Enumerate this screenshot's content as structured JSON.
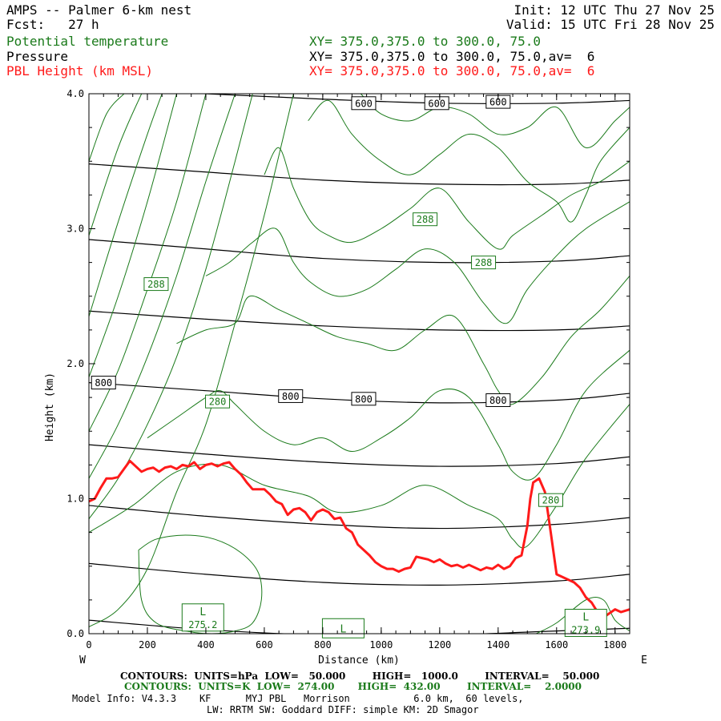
{
  "header": {
    "title": "AMPS -- Palmer 6-km nest",
    "fcst": "Fcst:   27 h",
    "init": "Init: 12 UTC Thu 27 Nov 25",
    "valid": "Valid: 15 UTC Fri 28 Nov 25",
    "fields": [
      {
        "label": "Potential temperature",
        "xy": "XY= 375.0,375.0 to 300.0, 75.0",
        "color": "#1a7a1a"
      },
      {
        "label": "Pressure",
        "xy": "XY= 375.0,375.0 to 300.0, 75.0,av=  6",
        "color": "#000000"
      },
      {
        "label": "PBL Height (km MSL)",
        "xy": "XY= 375.0,375.0 to 300.0, 75.0,av=  6",
        "color": "#ff1a1a"
      }
    ]
  },
  "chart_data": {
    "type": "line",
    "xlabel": "Distance (km)",
    "ylabel": "Height (km)",
    "xlim": [
      0,
      1850
    ],
    "ylim": [
      0,
      4.0
    ],
    "xticks": [
      "0",
      "200",
      "400",
      "600",
      "800",
      "1000",
      "1200",
      "1400",
      "1600",
      "1800"
    ],
    "xtick_values": [
      0,
      200,
      400,
      600,
      800,
      1000,
      1200,
      1400,
      1600,
      1800
    ],
    "yticks": [
      "0.0",
      "1.0",
      "2.0",
      "3.0",
      "4.0"
    ],
    "ytick_values": [
      0,
      1,
      2,
      3,
      4
    ],
    "west_label": "W",
    "east_label": "E",
    "pressure_contours": [
      {
        "x": [
          0,
          400,
          800,
          1200,
          1600,
          1850
        ],
        "y": [
          0.1,
          0.03,
          -0.01,
          -0.01,
          0.02,
          0.04
        ]
      },
      {
        "x": [
          0,
          400,
          800,
          1200,
          1600,
          1850
        ],
        "y": [
          0.52,
          0.44,
          0.38,
          0.36,
          0.39,
          0.44
        ]
      },
      {
        "x": [
          0,
          400,
          800,
          1200,
          1600,
          1850
        ],
        "y": [
          0.95,
          0.87,
          0.81,
          0.78,
          0.81,
          0.86
        ]
      },
      {
        "x": [
          0,
          400,
          800,
          1200,
          1600,
          1850
        ],
        "y": [
          1.4,
          1.33,
          1.27,
          1.24,
          1.26,
          1.31
        ]
      },
      {
        "x": [
          0,
          400,
          800,
          1200,
          1600,
          1850
        ],
        "y": [
          1.86,
          1.8,
          1.74,
          1.71,
          1.73,
          1.78
        ]
      },
      {
        "x": [
          0,
          400,
          800,
          1200,
          1600,
          1850
        ],
        "y": [
          2.39,
          2.33,
          2.28,
          2.25,
          2.25,
          2.28
        ]
      },
      {
        "x": [
          0,
          400,
          800,
          1200,
          1600,
          1850
        ],
        "y": [
          2.92,
          2.85,
          2.78,
          2.75,
          2.76,
          2.8
        ]
      },
      {
        "x": [
          0,
          400,
          800,
          1200,
          1600,
          1850
        ],
        "y": [
          3.48,
          3.42,
          3.36,
          3.33,
          3.33,
          3.36
        ]
      },
      {
        "x": [
          0,
          400,
          800,
          1200,
          1600,
          1850
        ],
        "y": [
          4.05,
          4.0,
          3.96,
          3.93,
          3.93,
          3.95
        ]
      }
    ],
    "pressure_labels": [
      {
        "text": "600",
        "x": 940,
        "y": 3.93
      },
      {
        "text": "600",
        "x": 1190,
        "y": 3.93
      },
      {
        "text": "600",
        "x": 1400,
        "y": 3.94
      },
      {
        "text": "800",
        "x": 50,
        "y": 1.86
      },
      {
        "text": "800",
        "x": 690,
        "y": 1.76
      },
      {
        "text": "800",
        "x": 940,
        "y": 1.74
      },
      {
        "text": "800",
        "x": 1400,
        "y": 1.73
      }
    ],
    "theta_contours": [
      {
        "x": [
          0,
          100,
          200,
          300,
          400,
          500,
          600,
          700
        ],
        "y": [
          0.05,
          0.18,
          0.48,
          1.05,
          1.55,
          2.3,
          3.1,
          4.0
        ]
      },
      {
        "x": [
          0,
          100,
          200,
          300,
          400,
          500,
          560
        ],
        "y": [
          0.85,
          1.15,
          1.55,
          2.05,
          2.7,
          3.5,
          4.0
        ]
      },
      {
        "x": [
          0,
          100,
          200,
          300,
          400,
          500
        ],
        "y": [
          1.15,
          1.55,
          2.05,
          2.65,
          3.35,
          4.0
        ]
      },
      {
        "x": [
          0,
          100,
          200,
          300,
          400
        ],
        "y": [
          1.5,
          1.95,
          2.55,
          3.2,
          4.0
        ]
      },
      {
        "x": [
          0,
          100,
          200,
          300
        ],
        "y": [
          1.9,
          2.5,
          3.2,
          4.0
        ]
      },
      {
        "x": [
          0,
          100,
          200,
          250
        ],
        "y": [
          2.35,
          3.05,
          3.7,
          4.0
        ]
      },
      {
        "x": [
          0,
          100,
          180
        ],
        "y": [
          2.95,
          3.6,
          4.0
        ]
      },
      {
        "x": [
          0,
          60,
          120
        ],
        "y": [
          3.5,
          3.85,
          4.0
        ]
      },
      {
        "x": [
          0,
          150,
          300,
          450,
          600,
          750,
          850,
          1000,
          1150,
          1300,
          1400,
          1450,
          1500,
          1600,
          1700,
          1850
        ],
        "y": [
          0.75,
          0.95,
          1.2,
          1.25,
          1.1,
          1.02,
          0.9,
          0.95,
          1.1,
          0.95,
          0.85,
          0.7,
          0.65,
          0.95,
          1.3,
          1.7
        ]
      },
      {
        "x": [
          200,
          300,
          400,
          450,
          500,
          600,
          700,
          800,
          900,
          1000,
          1100,
          1200,
          1300,
          1400,
          1450,
          1520,
          1600,
          1700,
          1850
        ],
        "y": [
          1.45,
          1.6,
          1.75,
          1.8,
          1.7,
          1.5,
          1.4,
          1.45,
          1.35,
          1.45,
          1.6,
          1.8,
          1.75,
          1.4,
          1.2,
          1.15,
          1.4,
          1.8,
          2.1
        ]
      },
      {
        "x": [
          300,
          400,
          500,
          550,
          650,
          750,
          850,
          950,
          1050,
          1150,
          1250,
          1350,
          1400,
          1450,
          1550,
          1650,
          1750,
          1850
        ],
        "y": [
          2.15,
          2.25,
          2.3,
          2.5,
          2.4,
          2.3,
          2.2,
          2.15,
          2.1,
          2.25,
          2.35,
          2.0,
          1.8,
          1.7,
          1.9,
          2.2,
          2.4,
          2.65
        ]
      },
      {
        "x": [
          400,
          480,
          560,
          640,
          700,
          760,
          850,
          950,
          1050,
          1150,
          1250,
          1350,
          1430,
          1500,
          1600,
          1700,
          1850
        ],
        "y": [
          2.65,
          2.75,
          2.9,
          3.0,
          2.75,
          2.6,
          2.5,
          2.55,
          2.7,
          2.85,
          2.75,
          2.45,
          2.3,
          2.55,
          2.8,
          3.0,
          3.2
        ]
      },
      {
        "x": [
          600,
          650,
          700,
          760,
          820,
          900,
          1000,
          1100,
          1200,
          1300,
          1400,
          1450,
          1550,
          1650,
          1750,
          1850
        ],
        "y": [
          3.4,
          3.6,
          3.3,
          3.05,
          2.95,
          2.9,
          3.0,
          3.15,
          3.3,
          3.05,
          2.85,
          2.95,
          3.1,
          3.25,
          3.35,
          3.5
        ]
      },
      {
        "x": [
          750,
          820,
          900,
          1000,
          1100,
          1200,
          1300,
          1400,
          1500,
          1600,
          1650,
          1700,
          1750,
          1850
        ],
        "y": [
          3.8,
          3.95,
          3.7,
          3.5,
          3.4,
          3.55,
          3.7,
          3.6,
          3.35,
          3.2,
          3.05,
          3.25,
          3.5,
          3.75
        ]
      },
      {
        "x": [
          930,
          1000,
          1100,
          1200,
          1300,
          1400,
          1500,
          1600,
          1700,
          1800,
          1850
        ],
        "y": [
          4.0,
          3.85,
          3.8,
          3.9,
          3.85,
          3.7,
          3.75,
          3.9,
          3.6,
          3.8,
          3.9
        ]
      },
      {
        "x": [
          170,
          230,
          330,
          430,
          520,
          580,
          590,
          560,
          500,
          420,
          330,
          230,
          180,
          170
        ],
        "y": [
          0.62,
          0.7,
          0.73,
          0.7,
          0.6,
          0.45,
          0.25,
          0.08,
          0.02,
          0.0,
          0.02,
          0.08,
          0.25,
          0.62
        ]
      },
      {
        "x": [
          1530,
          1600,
          1700,
          1760,
          1800,
          1850
        ],
        "y": [
          0.0,
          0.08,
          0.25,
          0.25,
          0.1,
          0.02
        ]
      }
    ],
    "theta_labels": [
      {
        "text": "288",
        "x": 1150,
        "y": 3.07
      },
      {
        "text": "288",
        "x": 1350,
        "y": 2.75
      },
      {
        "text": "288",
        "x": 230,
        "y": 2.59
      },
      {
        "text": "280",
        "x": 440,
        "y": 1.72
      },
      {
        "text": "280",
        "x": 1580,
        "y": 0.99
      }
    ],
    "low_labels": [
      {
        "letter": "L",
        "value": "275.2",
        "x": 390,
        "y": 0.12
      },
      {
        "letter": "L",
        "value": "",
        "x": 870,
        "y": 0.04
      },
      {
        "letter": "L",
        "value": "273.9",
        "x": 1700,
        "y": 0.08
      }
    ],
    "pbl_height": {
      "x": [
        0,
        20,
        40,
        60,
        80,
        100,
        120,
        140,
        160,
        180,
        200,
        220,
        240,
        260,
        280,
        300,
        320,
        340,
        360,
        380,
        400,
        420,
        440,
        460,
        480,
        500,
        520,
        540,
        560,
        580,
        600,
        620,
        640,
        660,
        680,
        700,
        720,
        740,
        760,
        780,
        800,
        820,
        840,
        860,
        880,
        900,
        920,
        940,
        960,
        980,
        1000,
        1020,
        1040,
        1060,
        1080,
        1100,
        1120,
        1140,
        1160,
        1180,
        1200,
        1220,
        1240,
        1260,
        1280,
        1300,
        1320,
        1340,
        1360,
        1380,
        1400,
        1420,
        1440,
        1460,
        1480,
        1500,
        1510,
        1520,
        1540,
        1560,
        1580,
        1600,
        1620,
        1640,
        1660,
        1680,
        1700,
        1720,
        1740,
        1760,
        1780,
        1800,
        1820,
        1850
      ],
      "y": [
        0.98,
        1.0,
        1.08,
        1.15,
        1.15,
        1.16,
        1.22,
        1.28,
        1.24,
        1.2,
        1.22,
        1.23,
        1.2,
        1.23,
        1.24,
        1.22,
        1.25,
        1.24,
        1.27,
        1.22,
        1.25,
        1.26,
        1.24,
        1.26,
        1.27,
        1.22,
        1.18,
        1.12,
        1.07,
        1.07,
        1.07,
        1.03,
        0.98,
        0.96,
        0.88,
        0.92,
        0.93,
        0.9,
        0.84,
        0.9,
        0.92,
        0.9,
        0.85,
        0.86,
        0.78,
        0.75,
        0.66,
        0.62,
        0.58,
        0.53,
        0.5,
        0.48,
        0.48,
        0.46,
        0.48,
        0.49,
        0.57,
        0.56,
        0.55,
        0.53,
        0.55,
        0.52,
        0.5,
        0.51,
        0.49,
        0.51,
        0.49,
        0.47,
        0.49,
        0.48,
        0.51,
        0.48,
        0.5,
        0.56,
        0.58,
        0.8,
        1.0,
        1.12,
        1.15,
        1.05,
        0.75,
        0.44,
        0.42,
        0.4,
        0.38,
        0.34,
        0.27,
        0.23,
        0.16,
        0.12,
        0.15,
        0.18,
        0.16,
        0.18
      ]
    }
  },
  "footer": {
    "line1_a": "CONTOURS:  UNITS=hPa  LOW=   50.000        HIGH=   1000.0        INTERVAL=    50.000",
    "line2_a": "CONTOURS:  UNITS=K  LOW=  274.00       HIGH=  432.00        INTERVAL=    2.0000",
    "line3": "Model Info: V4.3.3    KF      MYJ PBL   Morrison           6.0 km,  60 levels,",
    "line4": "LW: RRTM SW: Goddard DIFF: simple KM: 2D Smagor"
  },
  "colors": {
    "theta": "#1a7a1a",
    "pressure": "#000000",
    "pbl": "#ff1a1a"
  }
}
